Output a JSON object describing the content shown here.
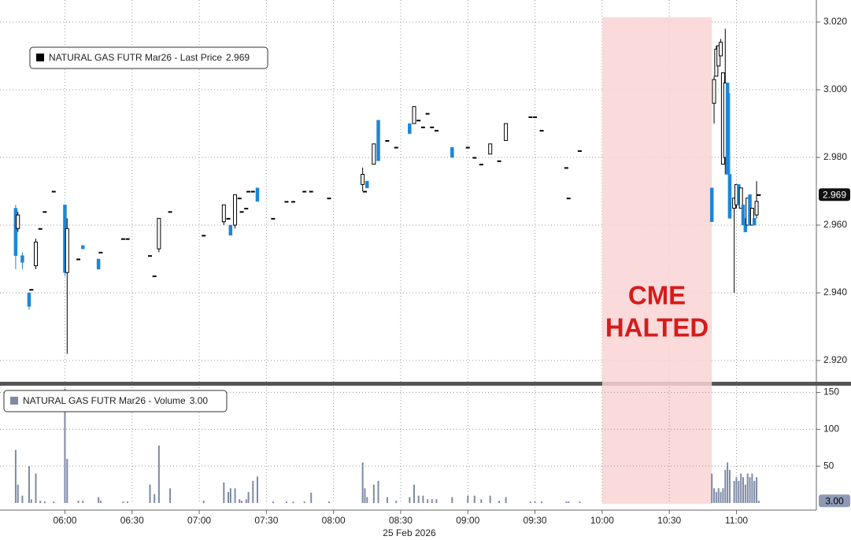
{
  "chart_data": [
    {
      "type": "candlestick",
      "legend": "NATURAL GAS FUTR Mar26 - Last Price",
      "last": 2.969,
      "up_color": "#000000",
      "down_color": "#1c86d8",
      "annotation": [
        "CME",
        "HALTED"
      ],
      "halt": [
        "10:00",
        "10:49"
      ],
      "x": [
        "05:38",
        "05:39",
        "05:41",
        "05:44",
        "05:45",
        "05:47",
        "05:49",
        "05:51",
        "05:55",
        "06:00",
        "06:01",
        "06:06",
        "06:08",
        "06:15",
        "06:16",
        "06:26",
        "06:28",
        "06:38",
        "06:40",
        "06:42",
        "06:47",
        "07:02",
        "07:11",
        "07:13",
        "07:14",
        "07:16",
        "07:18",
        "07:19",
        "07:21",
        "07:22",
        "07:24",
        "07:26",
        "07:33",
        "07:39",
        "07:42",
        "07:47",
        "07:50",
        "07:58",
        "08:13",
        "08:14",
        "08:15",
        "08:18",
        "08:20",
        "08:24",
        "08:28",
        "08:34",
        "08:36",
        "08:38",
        "08:40",
        "08:42",
        "08:44",
        "08:46",
        "08:53",
        "09:00",
        "09:03",
        "09:06",
        "09:10",
        "09:14",
        "09:17",
        "09:28",
        "09:30",
        "09:33",
        "09:44",
        "09:45",
        "09:50",
        "10:49",
        "10:50",
        "10:51",
        "10:52",
        "10:53",
        "10:54",
        "10:55",
        "10:56",
        "10:57",
        "10:59",
        "11:00",
        "11:01",
        "11:02",
        "11:03",
        "11:04",
        "11:05",
        "11:06",
        "11:07",
        "11:08",
        "11:09",
        "11:10"
      ],
      "open": [
        2.965,
        2.959,
        2.951,
        2.94,
        2.941,
        2.948,
        2.959,
        2.964,
        2.97,
        2.966,
        2.946,
        2.95,
        2.954,
        2.95,
        2.952,
        2.956,
        2.956,
        2.951,
        2.945,
        2.953,
        2.964,
        2.957,
        2.961,
        2.962,
        2.96,
        2.96,
        2.968,
        2.964,
        2.965,
        2.97,
        2.97,
        2.971,
        2.962,
        2.967,
        2.967,
        2.97,
        2.97,
        2.968,
        2.972,
        2.97,
        2.973,
        2.978,
        2.991,
        2.985,
        2.983,
        2.99,
        2.99,
        2.991,
        2.989,
        2.993,
        2.989,
        2.988,
        2.983,
        2.983,
        2.98,
        2.978,
        2.981,
        2.979,
        2.985,
        2.992,
        2.992,
        2.988,
        2.977,
        2.968,
        2.982,
        2.971,
        2.996,
        3.004,
        3.007,
        3.01,
        2.978,
        2.98,
        3.002,
        2.975,
        2.965,
        2.966,
        2.972,
        2.965,
        2.966,
        2.962,
        2.96,
        2.969,
        2.96,
        2.962,
        2.963,
        2.969
      ],
      "high": [
        2.966,
        2.964,
        2.952,
        2.94,
        2.941,
        2.956,
        2.959,
        2.964,
        2.97,
        2.966,
        2.962,
        2.95,
        2.954,
        2.95,
        2.952,
        2.956,
        2.956,
        2.951,
        2.945,
        2.962,
        2.964,
        2.957,
        2.966,
        2.962,
        2.96,
        2.969,
        2.968,
        2.964,
        2.965,
        2.97,
        2.97,
        2.971,
        2.962,
        2.967,
        2.967,
        2.97,
        2.97,
        2.968,
        2.977,
        2.97,
        2.973,
        2.984,
        2.991,
        2.985,
        2.983,
        2.99,
        2.995,
        2.991,
        2.989,
        2.993,
        2.989,
        2.988,
        2.983,
        2.983,
        2.98,
        2.978,
        2.984,
        2.979,
        2.99,
        2.992,
        2.992,
        2.988,
        2.977,
        2.968,
        2.982,
        2.971,
        3.004,
        3.013,
        3.013,
        3.015,
        3.005,
        3.018,
        3.002,
        2.999,
        2.968,
        2.972,
        2.972,
        2.971,
        2.966,
        2.962,
        2.968,
        2.969,
        2.965,
        2.962,
        2.973,
        2.969
      ],
      "low": [
        2.947,
        2.958,
        2.947,
        2.935,
        2.941,
        2.947,
        2.959,
        2.964,
        2.97,
        2.945,
        2.922,
        2.95,
        2.953,
        2.947,
        2.952,
        2.956,
        2.956,
        2.951,
        2.945,
        2.952,
        2.964,
        2.957,
        2.96,
        2.962,
        2.957,
        2.959,
        2.968,
        2.964,
        2.965,
        2.97,
        2.97,
        2.967,
        2.962,
        2.967,
        2.967,
        2.97,
        2.97,
        2.968,
        2.97,
        2.97,
        2.971,
        2.978,
        2.979,
        2.985,
        2.983,
        2.987,
        2.99,
        2.991,
        2.989,
        2.993,
        2.989,
        2.988,
        2.98,
        2.983,
        2.98,
        2.978,
        2.981,
        2.979,
        2.985,
        2.992,
        2.992,
        2.988,
        2.977,
        2.968,
        2.982,
        2.961,
        2.99,
        3.004,
        3.007,
        3.01,
        2.978,
        2.975,
        2.975,
        2.962,
        2.94,
        2.965,
        2.966,
        2.965,
        2.96,
        2.958,
        2.96,
        2.96,
        2.96,
        2.96,
        2.962,
        2.969
      ],
      "close": [
        2.951,
        2.963,
        2.949,
        2.936,
        2.941,
        2.955,
        2.959,
        2.964,
        2.97,
        2.946,
        2.959,
        2.95,
        2.953,
        2.947,
        2.952,
        2.956,
        2.956,
        2.951,
        2.945,
        2.962,
        2.964,
        2.957,
        2.966,
        2.962,
        2.957,
        2.969,
        2.968,
        2.964,
        2.965,
        2.97,
        2.97,
        2.967,
        2.962,
        2.967,
        2.967,
        2.97,
        2.97,
        2.968,
        2.975,
        2.97,
        2.971,
        2.984,
        2.979,
        2.985,
        2.983,
        2.987,
        2.995,
        2.991,
        2.989,
        2.993,
        2.989,
        2.988,
        2.98,
        2.983,
        2.98,
        2.978,
        2.984,
        2.979,
        2.99,
        2.992,
        2.992,
        2.988,
        2.977,
        2.968,
        2.982,
        2.961,
        3.003,
        3.012,
        3.013,
        3.014,
        3.005,
        3.002,
        2.975,
        2.962,
        2.968,
        2.972,
        2.966,
        2.971,
        2.96,
        2.958,
        2.968,
        2.96,
        2.965,
        2.96,
        2.967,
        2.969
      ],
      "xlim": [
        "05:31",
        "11:35"
      ],
      "xticks": [
        "06:00",
        "06:30",
        "07:00",
        "07:30",
        "08:00",
        "08:30",
        "09:00",
        "09:30",
        "10:00",
        "10:30",
        "11:00"
      ],
      "date": "25 Feb 2026",
      "ylim": [
        2.9135,
        3.0265
      ],
      "yticks": [
        {
          "value": 3.02,
          "label": "3.020"
        },
        {
          "value": 3.0,
          "label": "3.000"
        },
        {
          "value": 2.98,
          "label": "2.980"
        },
        {
          "value": 2.96,
          "label": "2.960"
        },
        {
          "value": 2.94,
          "label": "2.940"
        },
        {
          "value": 2.92,
          "label": "2.920"
        }
      ],
      "grid": true
    },
    {
      "type": "bar",
      "legend": "NATURAL GAS FUTR Mar26 - Volume",
      "last": 3,
      "last_label": "3.00",
      "color": "#7d8aa6",
      "x": [
        "05:38",
        "05:39",
        "05:41",
        "05:44",
        "05:45",
        "05:47",
        "05:49",
        "05:51",
        "05:55",
        "06:00",
        "06:01",
        "06:06",
        "06:08",
        "06:15",
        "06:16",
        "06:26",
        "06:28",
        "06:38",
        "06:40",
        "06:42",
        "06:47",
        "07:02",
        "07:11",
        "07:13",
        "07:14",
        "07:16",
        "07:18",
        "07:19",
        "07:21",
        "07:22",
        "07:24",
        "07:26",
        "07:33",
        "07:39",
        "07:42",
        "07:47",
        "07:50",
        "07:58",
        "08:13",
        "08:14",
        "08:15",
        "08:18",
        "08:20",
        "08:24",
        "08:28",
        "08:34",
        "08:36",
        "08:38",
        "08:40",
        "08:42",
        "08:44",
        "08:46",
        "08:53",
        "09:00",
        "09:03",
        "09:06",
        "09:10",
        "09:14",
        "09:17",
        "09:28",
        "09:30",
        "09:33",
        "09:44",
        "09:45",
        "09:50",
        "10:49",
        "10:50",
        "10:51",
        "10:52",
        "10:53",
        "10:54",
        "10:55",
        "10:56",
        "10:57",
        "10:59",
        "11:00",
        "11:01",
        "11:02",
        "11:03",
        "11:04",
        "11:05",
        "11:06",
        "11:07",
        "11:08",
        "11:09",
        "11:10"
      ],
      "values": [
        72,
        25,
        10,
        50,
        5,
        40,
        3,
        2,
        2,
        155,
        60,
        3,
        3,
        8,
        3,
        2,
        2,
        25,
        12,
        78,
        20,
        3,
        28,
        15,
        20,
        20,
        5,
        3,
        5,
        15,
        30,
        36,
        2,
        2,
        2,
        2,
        14,
        2,
        55,
        20,
        8,
        25,
        30,
        8,
        3,
        8,
        25,
        10,
        10,
        5,
        5,
        5,
        8,
        10,
        10,
        5,
        10,
        3,
        8,
        2,
        2,
        2,
        2,
        2,
        2,
        40,
        20,
        15,
        20,
        15,
        20,
        45,
        55,
        45,
        30,
        35,
        30,
        40,
        35,
        25,
        40,
        35,
        40,
        30,
        35,
        3
      ],
      "xlim": [
        "05:31",
        "11:35"
      ],
      "ylim": [
        0,
        157
      ],
      "yticks": [
        50,
        100,
        150
      ],
      "grid": true
    }
  ]
}
